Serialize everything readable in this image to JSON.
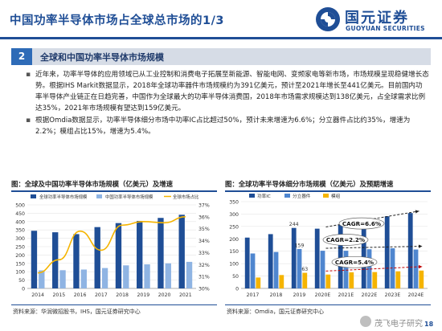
{
  "header": {
    "title": "中国功率半导体市场占全球总市场的1/3",
    "logo_cn": "国元证券",
    "logo_en": "GUOYUAN SECURITIES"
  },
  "section": {
    "number": "2",
    "title": "全球和中国功率半导体市场规模"
  },
  "bullets": [
    "近年来，功率半导体的应用领域已从工业控制和消费电子拓展至新能源、智能电网、变频家电等新市场，市场规模呈现稳健增长态势。根据IHS Markit数据显示，2018年全球功率器件市场规模约为391亿美元，预计至2021年增长至441亿美元。目前国内功率半导体产业链正在日趋完善，中国作为全球最大的功率半导体消费国，2018年市场需求规模达到138亿美元，占全球需求比例达35%，2021年市场规模有望达到159亿美元。",
    "根据Omdia数据显示，功率半导体细分市场中功率IC占比超过50%，预计未来增速为6.6%；分立器件占比约35%，增速为2.2%；模组占比15%，增速为5.4%。"
  ],
  "left_chart": {
    "heading": "图：全球及中国功率半导体市场规模（亿美元）及增速",
    "source": "资料来源：华润微招股书，IHS，国元证券研究中心"
  },
  "right_chart": {
    "heading": "图：全球功率半导体细分市场规模（亿美元）及预期增速",
    "source": "资料来源：Omdia，国元证券研究中心"
  },
  "footer": {
    "page": "18",
    "watermark": "茂飞电子研究"
  },
  "colors": {
    "navy": "#1f4e96",
    "blue": "#2e6bb7",
    "light_blue": "#8fb4e3",
    "orange": "#f5b400",
    "red": "#c00000"
  },
  "chart_data": [
    {
      "type": "bar",
      "categories": [
        "2014",
        "2015",
        "2016",
        "2017",
        "2018",
        "2019",
        "2020",
        "2021"
      ],
      "series": [
        {
          "name": "全球功率半导体市场规模",
          "values": [
            345,
            336,
            325,
            367,
            391,
            404,
            422,
            441
          ],
          "axis": "left",
          "kind": "bar"
        },
        {
          "name": "中国功率半导体市场规模",
          "values": [
            108,
            109,
            113,
            122,
            138,
            144,
            150,
            159
          ],
          "axis": "left",
          "kind": "bar"
        },
        {
          "name": "全球市场占比",
          "values": [
            31.3,
            32.4,
            34.8,
            33.2,
            35.3,
            35.6,
            35.5,
            36.0
          ],
          "axis": "right",
          "kind": "line"
        }
      ],
      "ylim": [
        0,
        500
      ],
      "yticks": [
        0,
        50,
        100,
        150,
        200,
        250,
        300,
        350,
        400,
        450,
        500
      ],
      "y2lim": [
        30,
        37
      ],
      "y2ticks": [
        "30%",
        "31%",
        "32%",
        "33%",
        "34%",
        "35%",
        "36%",
        "37%"
      ],
      "legend": "top"
    },
    {
      "type": "bar",
      "categories": [
        "2017",
        "2018",
        "2019",
        "2020E",
        "2021E",
        "2022E",
        "2023E",
        "2024E"
      ],
      "series": [
        {
          "name": "功率IC",
          "values": [
            205,
            219,
            244,
            241,
            258,
            278,
            291,
            304
          ]
        },
        {
          "name": "分立器件",
          "values": [
            141,
            147,
            159,
            152,
            152,
            158,
            162,
            157
          ]
        },
        {
          "name": "模组",
          "values": [
            44,
            54,
            63,
            56,
            65,
            66,
            69,
            72
          ]
        }
      ],
      "data_labels": [
        {
          "category": "2019",
          "series": "功率IC",
          "text": "244"
        },
        {
          "category": "2019",
          "series": "分立器件",
          "text": "159"
        },
        {
          "category": "2019",
          "series": "模组",
          "text": "63"
        }
      ],
      "annotations": [
        "CAGR=6.6%",
        "CAGR=2.2%",
        "CAGR=5.4%"
      ],
      "ylim": [
        0,
        350
      ],
      "yticks": [
        0,
        50,
        100,
        150,
        200,
        250,
        300,
        350
      ],
      "legend": "top"
    }
  ]
}
